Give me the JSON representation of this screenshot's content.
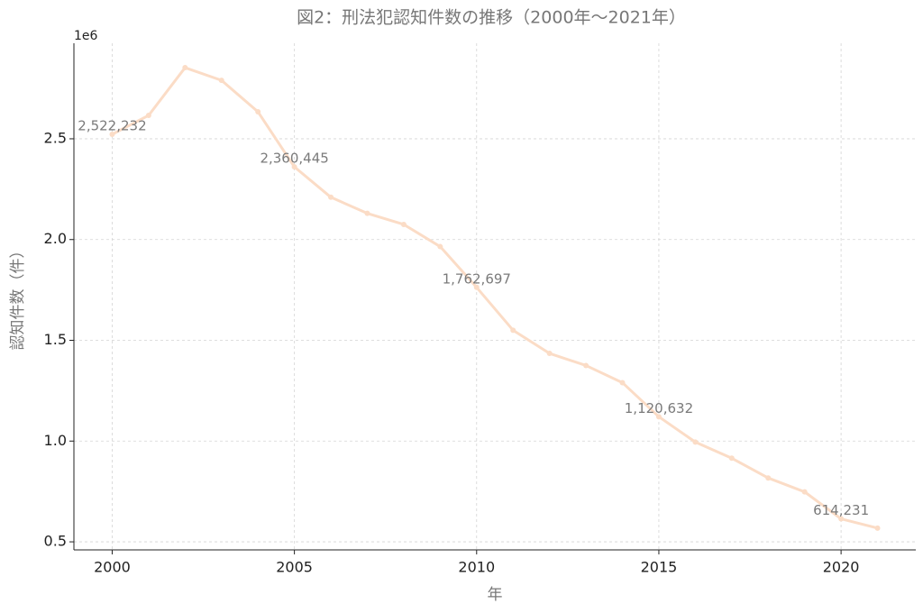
{
  "chart_data": {
    "type": "line",
    "title": "図2：刑法犯認知件数の推移（2000年〜2021年）",
    "xlabel": "年",
    "ylabel": "認知件数（件）",
    "y_multiplier": "1e6",
    "x": [
      2000,
      2001,
      2002,
      2003,
      2004,
      2005,
      2006,
      2007,
      2008,
      2009,
      2010,
      2011,
      2012,
      2013,
      2014,
      2015,
      2016,
      2017,
      2018,
      2019,
      2020,
      2021
    ],
    "values": [
      2522232,
      2616000,
      2853000,
      2790000,
      2634000,
      2360445,
      2210000,
      2130000,
      2075000,
      1965000,
      1762697,
      1550000,
      1435000,
      1375000,
      1290000,
      1120632,
      995000,
      915000,
      817000,
      748000,
      614231,
      568000
    ],
    "value_labels": [
      "2,522,232",
      null,
      null,
      null,
      null,
      "2,360,445",
      null,
      null,
      null,
      null,
      "1,762,697",
      null,
      null,
      null,
      null,
      "1,120,632",
      null,
      null,
      null,
      null,
      "614,231",
      null
    ],
    "color": "#fbdcc6",
    "xlim": [
      1998.95,
      2022.05
    ],
    "xticks": [
      2000,
      2005,
      2010,
      2015,
      2020
    ],
    "ylim": [
      460000,
      2974000
    ],
    "yticks": [
      {
        "value": 500000,
        "label": "0.5"
      },
      {
        "value": 1000000,
        "label": "1.0"
      },
      {
        "value": 1500000,
        "label": "1.5"
      },
      {
        "value": 2000000,
        "label": "2.0"
      },
      {
        "value": 2500000,
        "label": "2.5"
      }
    ],
    "grid": true
  }
}
